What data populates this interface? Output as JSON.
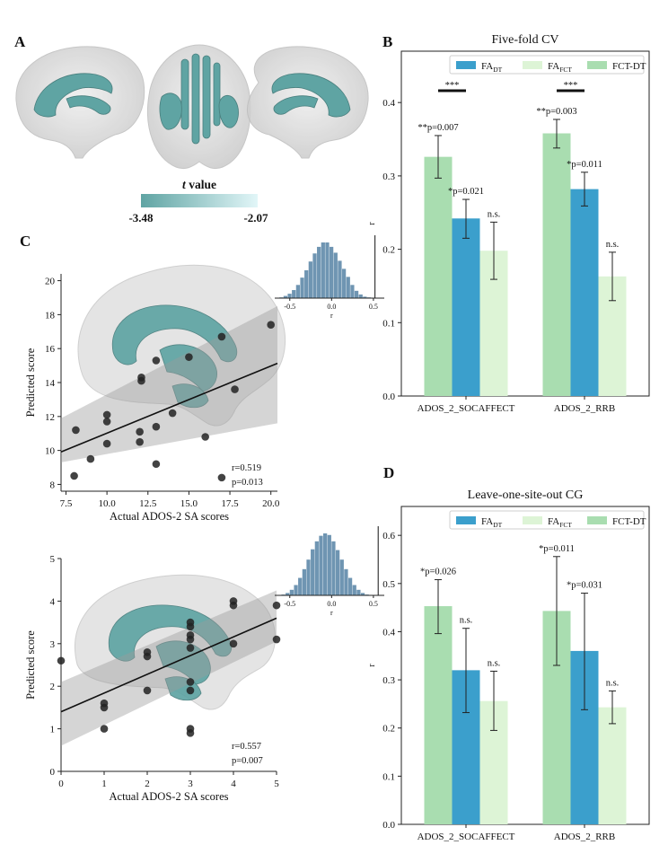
{
  "panels": {
    "a": "A",
    "b": "B",
    "c": "C",
    "d": "D"
  },
  "colorbar": {
    "title": "t value",
    "min_label": "-3.48",
    "max_label": "-2.07",
    "color_low": "#5fa4a3",
    "color_high": "#e2f6f8"
  },
  "colors": {
    "fa_dt": "#3b9fcc",
    "fa_fct": "#ddf4d6",
    "fct_dt": "#a9ddb0",
    "scatter_point": "#222222",
    "histogram": "#6f95b2",
    "tract": "#5fa4a3",
    "brain": "#d4d4d4"
  },
  "chart_data": [
    {
      "id": "panel-b",
      "type": "bar",
      "title": "Five-fold CV",
      "xlabel": "",
      "ylabel": "r",
      "ylim": [
        0,
        0.47
      ],
      "yticks": [
        "0.0",
        "0.1",
        "0.2",
        "0.3",
        "0.4"
      ],
      "categories": [
        "ADOS_2_SOCAFFECT",
        "ADOS_2_RRB"
      ],
      "legend": {
        "placement": "top-right",
        "entries": [
          "FA",
          "FA",
          "FCT-DT"
        ],
        "subscripts": [
          "DT",
          "FCT",
          ""
        ]
      },
      "series": [
        {
          "name": "FCT-DT",
          "values": [
            0.326,
            0.358
          ],
          "err_low": [
            0.297,
            0.338
          ],
          "err_high": [
            0.355,
            0.377
          ],
          "labels": [
            "**p=0.007",
            "**p=0.003"
          ]
        },
        {
          "name": "FA_DT",
          "values": [
            0.242,
            0.282
          ],
          "err_low": [
            0.215,
            0.259
          ],
          "err_high": [
            0.268,
            0.305
          ],
          "labels": [
            "*p=0.021",
            "*p=0.011"
          ]
        },
        {
          "name": "FA_FCT",
          "values": [
            0.198,
            0.163
          ],
          "err_low": [
            0.159,
            0.13
          ],
          "err_high": [
            0.237,
            0.196
          ],
          "labels": [
            "n.s.",
            "n.s."
          ]
        }
      ],
      "significance": [
        "***",
        "***"
      ]
    },
    {
      "id": "panel-d",
      "type": "bar",
      "title": "Leave-one-site-out CG",
      "xlabel": "",
      "ylabel": "r",
      "ylim": [
        0,
        0.66
      ],
      "yticks": [
        "0.0",
        "0.1",
        "0.2",
        "0.3",
        "0.4",
        "0.5",
        "0.6"
      ],
      "categories": [
        "ADOS_2_SOCAFFECT",
        "ADOS_2_RRB"
      ],
      "legend": {
        "placement": "top-right",
        "entries": [
          "FA",
          "FA",
          "FCT-DT"
        ],
        "subscripts": [
          "DT",
          "FCT",
          ""
        ]
      },
      "series": [
        {
          "name": "FCT-DT",
          "values": [
            0.453,
            0.443
          ],
          "err_low": [
            0.396,
            0.33
          ],
          "err_high": [
            0.508,
            0.556
          ],
          "labels": [
            "*p=0.026",
            "*p=0.011"
          ]
        },
        {
          "name": "FA_DT",
          "values": [
            0.32,
            0.36
          ],
          "err_low": [
            0.232,
            0.238
          ],
          "err_high": [
            0.407,
            0.48
          ],
          "labels": [
            "n.s.",
            "*p=0.031"
          ]
        },
        {
          "name": "FA_FCT",
          "values": [
            0.256,
            0.243
          ],
          "err_low": [
            0.195,
            0.209
          ],
          "err_high": [
            0.318,
            0.277
          ],
          "labels": [
            "n.s.",
            "n.s."
          ]
        }
      ]
    },
    {
      "id": "panel-c-top",
      "type": "scatter",
      "xlabel": "Actual ADOS-2 SA scores",
      "ylabel": "Predicted score",
      "xlim": [
        7.2,
        20.4
      ],
      "ylim": [
        7.6,
        20.4
      ],
      "xticks": [
        "7.5",
        "10.0",
        "12.5",
        "15.0",
        "17.5",
        "20.0"
      ],
      "yticks": [
        "8",
        "10",
        "12",
        "14",
        "16",
        "18",
        "20"
      ],
      "points": [
        [
          8,
          8.5
        ],
        [
          8.1,
          11.2
        ],
        [
          9,
          9.5
        ],
        [
          10,
          10.4
        ],
        [
          10,
          11.7
        ],
        [
          10,
          12.1
        ],
        [
          12,
          10.5
        ],
        [
          12,
          11.1
        ],
        [
          12.1,
          14.1
        ],
        [
          12.1,
          14.3
        ],
        [
          13,
          9.2
        ],
        [
          13,
          11.4
        ],
        [
          13,
          15.3
        ],
        [
          14,
          12.2
        ],
        [
          15,
          15.5
        ],
        [
          16,
          10.8
        ],
        [
          17,
          8.4
        ],
        [
          17,
          16.7
        ],
        [
          17.8,
          13.6
        ],
        [
          20,
          17.4
        ]
      ],
      "fit": {
        "slope": 0.395,
        "intercept": 7.07
      },
      "ci_band": {
        "x": [
          7.2,
          20.4
        ],
        "low": [
          9.3,
          11.6
        ],
        "high": [
          11.9,
          18.5
        ]
      },
      "annotation": [
        "r=0.519",
        "p=0.013"
      ],
      "inset": {
        "type": "histogram",
        "xlabel": "r",
        "xlim": [
          -0.68,
          0.63
        ],
        "xticks": [
          "-0.5",
          "0.0",
          "0.5"
        ],
        "bins_start": -0.625,
        "bin_width": 0.05,
        "counts": [
          1,
          3,
          6,
          11,
          18,
          28,
          38,
          50,
          61,
          70,
          76,
          76,
          70,
          62,
          51,
          40,
          29,
          18,
          10,
          5,
          2,
          1
        ],
        "observed_r": 0.519
      }
    },
    {
      "id": "panel-c-bottom",
      "type": "scatter",
      "xlabel": "Actual ADOS-2 SA scores",
      "ylabel": "Predicted score",
      "xlim": [
        0,
        5
      ],
      "ylim": [
        0,
        5
      ],
      "xticks": [
        "0",
        "1",
        "2",
        "3",
        "4",
        "5"
      ],
      "yticks": [
        "0",
        "1",
        "2",
        "3",
        "4",
        "5"
      ],
      "points": [
        [
          0,
          2.6
        ],
        [
          1,
          1.0
        ],
        [
          1,
          1.5
        ],
        [
          1,
          1.6
        ],
        [
          2,
          1.9
        ],
        [
          2,
          2.7
        ],
        [
          2,
          2.8
        ],
        [
          3,
          0.9
        ],
        [
          3,
          1.0
        ],
        [
          3,
          1.9
        ],
        [
          3,
          2.1
        ],
        [
          3,
          2.9
        ],
        [
          3,
          3.1
        ],
        [
          3,
          3.2
        ],
        [
          3,
          3.4
        ],
        [
          3,
          3.5
        ],
        [
          4,
          3.0
        ],
        [
          4,
          3.9
        ],
        [
          4,
          4.0
        ],
        [
          5,
          3.1
        ],
        [
          5,
          3.9
        ]
      ],
      "fit": {
        "slope": 0.44,
        "intercept": 1.4
      },
      "ci_band": {
        "x": [
          0,
          5
        ],
        "low": [
          0.6,
          3.05
        ],
        "high": [
          2.1,
          4.25
        ]
      },
      "annotation": [
        "r=0.557",
        "p=0.007"
      ],
      "inset": {
        "type": "histogram",
        "xlabel": "r",
        "xlim": [
          -0.68,
          0.63
        ],
        "xticks": [
          "-0.5",
          "0.0",
          "0.5"
        ],
        "bins_start": -0.6,
        "bin_width": 0.05,
        "counts": [
          1,
          3,
          7,
          13,
          22,
          33,
          45,
          58,
          68,
          75,
          78,
          76,
          68,
          57,
          45,
          33,
          22,
          13,
          7,
          3,
          1
        ],
        "observed_r": 0.557
      }
    }
  ]
}
